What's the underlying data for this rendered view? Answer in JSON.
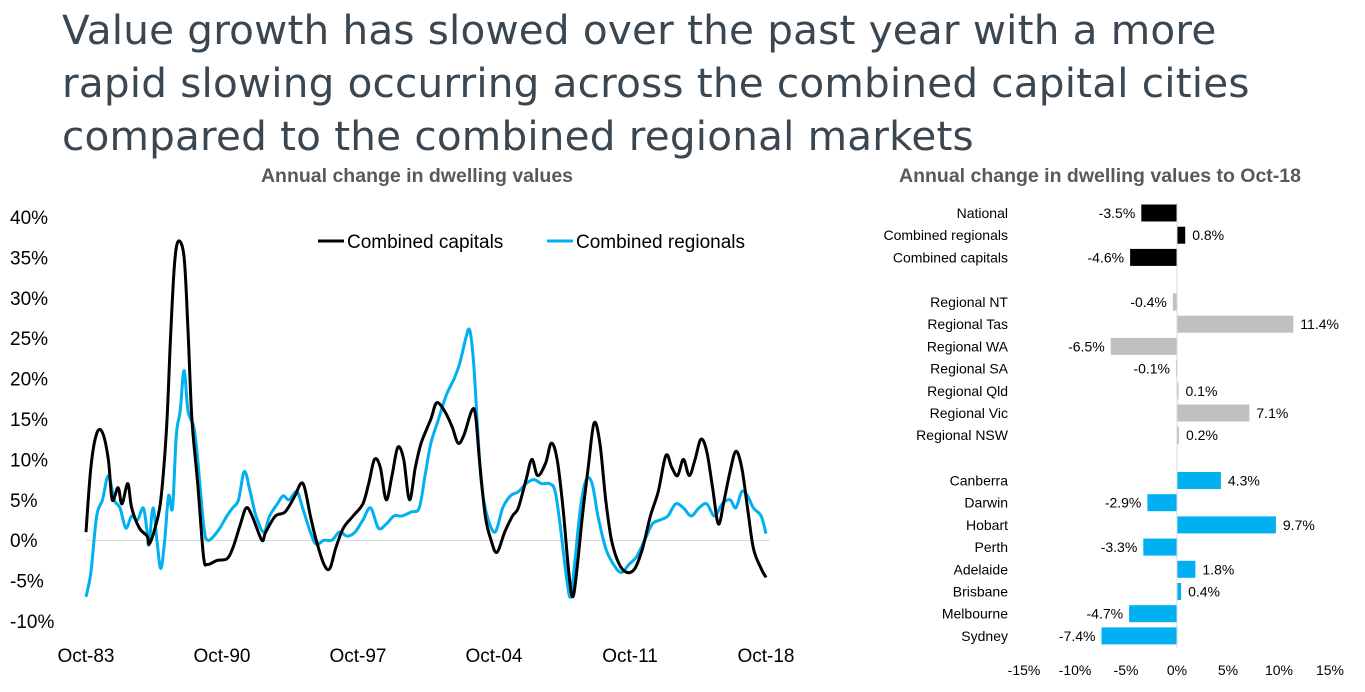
{
  "headline": [
    "Value growth has slowed over the past year with a more",
    "rapid slowing occurring across the combined capital cities",
    "compared to the combined regional markets"
  ],
  "colors": {
    "capitals": "#000000",
    "regionals": "#00b0f0",
    "regional_bars": "#c0c0c0",
    "national_bars": "#000000",
    "city_bars": "#00b0f0"
  },
  "chart_data": [
    {
      "type": "line",
      "title": "Annual change in dwelling values",
      "xlabel": "",
      "ylabel": "",
      "ylim": [
        -10,
        40
      ],
      "y_ticks": [
        "40%",
        "35%",
        "30%",
        "25%",
        "20%",
        "15%",
        "10%",
        "5%",
        "0%",
        "-5%",
        "-10%"
      ],
      "x_ticks": [
        "Oct-83",
        "Oct-90",
        "Oct-97",
        "Oct-04",
        "Oct-11",
        "Oct-18"
      ],
      "legend": [
        "Combined capitals",
        "Combined regionals"
      ],
      "series": [
        {
          "name": "Combined capitals",
          "points": [
            [
              1983.75,
              1
            ],
            [
              1984.0,
              9
            ],
            [
              1984.3,
              13.2
            ],
            [
              1984.6,
              13.3
            ],
            [
              1984.9,
              10
            ],
            [
              1985.1,
              5
            ],
            [
              1985.4,
              6.5
            ],
            [
              1985.6,
              4.5
            ],
            [
              1985.9,
              7
            ],
            [
              1986.1,
              4
            ],
            [
              1986.5,
              1.5
            ],
            [
              1986.9,
              0.5
            ],
            [
              1987.0,
              -0.5
            ],
            [
              1987.3,
              1.5
            ],
            [
              1987.6,
              5
            ],
            [
              1987.9,
              14
            ],
            [
              1988.1,
              25
            ],
            [
              1988.3,
              34
            ],
            [
              1988.5,
              37
            ],
            [
              1988.8,
              35
            ],
            [
              1989.0,
              26
            ],
            [
              1989.2,
              15
            ],
            [
              1989.5,
              7
            ],
            [
              1989.8,
              -2
            ],
            [
              1990.0,
              -3
            ],
            [
              1990.5,
              -2.5
            ],
            [
              1991.0,
              -2.3
            ],
            [
              1991.3,
              -1
            ],
            [
              1991.7,
              2
            ],
            [
              1992.0,
              4
            ],
            [
              1992.3,
              3
            ],
            [
              1992.8,
              0
            ],
            [
              1993.0,
              1
            ],
            [
              1993.5,
              3
            ],
            [
              1994.0,
              3.5
            ],
            [
              1994.5,
              5.5
            ],
            [
              1994.8,
              7
            ],
            [
              1995.0,
              6.5
            ],
            [
              1995.3,
              3
            ],
            [
              1995.6,
              0
            ],
            [
              1996.0,
              -3
            ],
            [
              1996.3,
              -3.5
            ],
            [
              1996.6,
              -1
            ],
            [
              1997.0,
              1.5
            ],
            [
              1997.5,
              3
            ],
            [
              1998.0,
              4.5
            ],
            [
              1998.3,
              7
            ],
            [
              1998.6,
              10
            ],
            [
              1998.9,
              9
            ],
            [
              1999.2,
              5
            ],
            [
              1999.5,
              8
            ],
            [
              1999.8,
              11.5
            ],
            [
              2000.1,
              10
            ],
            [
              2000.4,
              5
            ],
            [
              2000.7,
              9
            ],
            [
              2001.0,
              12
            ],
            [
              2001.5,
              15
            ],
            [
              2001.8,
              17
            ],
            [
              2002.2,
              16
            ],
            [
              2002.6,
              14
            ],
            [
              2002.9,
              12
            ],
            [
              2003.2,
              13
            ],
            [
              2003.6,
              16
            ],
            [
              2003.8,
              15.5
            ],
            [
              2004.0,
              10
            ],
            [
              2004.3,
              3
            ],
            [
              2004.6,
              0
            ],
            [
              2004.9,
              -1.5
            ],
            [
              2005.3,
              1
            ],
            [
              2005.7,
              3
            ],
            [
              2006.0,
              4
            ],
            [
              2006.4,
              7.5
            ],
            [
              2006.7,
              10
            ],
            [
              2007.0,
              8
            ],
            [
              2007.4,
              9.5
            ],
            [
              2007.7,
              12
            ],
            [
              2008.0,
              10
            ],
            [
              2008.3,
              4
            ],
            [
              2008.6,
              -4
            ],
            [
              2008.8,
              -7
            ],
            [
              2009.0,
              -4
            ],
            [
              2009.3,
              3
            ],
            [
              2009.6,
              9
            ],
            [
              2009.9,
              14.5
            ],
            [
              2010.2,
              12
            ],
            [
              2010.5,
              5
            ],
            [
              2010.8,
              0
            ],
            [
              2011.2,
              -3
            ],
            [
              2011.6,
              -4
            ],
            [
              2012.0,
              -3.5
            ],
            [
              2012.4,
              -1
            ],
            [
              2012.8,
              3
            ],
            [
              2013.2,
              6
            ],
            [
              2013.6,
              10.5
            ],
            [
              2013.9,
              9
            ],
            [
              2014.2,
              8
            ],
            [
              2014.5,
              10
            ],
            [
              2014.8,
              8
            ],
            [
              2015.1,
              10
            ],
            [
              2015.4,
              12.5
            ],
            [
              2015.7,
              11
            ],
            [
              2016.0,
              6.5
            ],
            [
              2016.3,
              2
            ],
            [
              2016.6,
              5
            ],
            [
              2016.9,
              8.5
            ],
            [
              2017.2,
              11
            ],
            [
              2017.5,
              9
            ],
            [
              2017.8,
              4
            ],
            [
              2018.1,
              -1
            ],
            [
              2018.5,
              -3.5
            ],
            [
              2018.75,
              -4.6
            ]
          ]
        },
        {
          "name": "Combined regionals",
          "points": [
            [
              1983.75,
              -7
            ],
            [
              1984.0,
              -4
            ],
            [
              1984.3,
              3
            ],
            [
              1984.6,
              5
            ],
            [
              1984.9,
              8
            ],
            [
              1985.2,
              5
            ],
            [
              1985.5,
              4
            ],
            [
              1985.8,
              1.5
            ],
            [
              1986.1,
              3
            ],
            [
              1986.4,
              2.5
            ],
            [
              1986.7,
              4
            ],
            [
              1986.9,
              1
            ],
            [
              1987.0,
              -0.5
            ],
            [
              1987.2,
              4
            ],
            [
              1987.4,
              0
            ],
            [
              1987.6,
              -3.5
            ],
            [
              1987.8,
              0
            ],
            [
              1988.0,
              5.5
            ],
            [
              1988.2,
              4
            ],
            [
              1988.4,
              13
            ],
            [
              1988.6,
              16
            ],
            [
              1988.8,
              21
            ],
            [
              1989.0,
              16
            ],
            [
              1989.3,
              14
            ],
            [
              1989.5,
              10
            ],
            [
              1989.8,
              2
            ],
            [
              1990.0,
              0
            ],
            [
              1990.5,
              1
            ],
            [
              1991.0,
              3
            ],
            [
              1991.3,
              4
            ],
            [
              1991.6,
              5
            ],
            [
              1991.9,
              8.5
            ],
            [
              1992.2,
              6
            ],
            [
              1992.5,
              3
            ],
            [
              1992.9,
              1
            ],
            [
              1993.2,
              3
            ],
            [
              1993.6,
              4.5
            ],
            [
              1993.9,
              5.5
            ],
            [
              1994.2,
              5
            ],
            [
              1994.6,
              6
            ],
            [
              1994.9,
              4
            ],
            [
              1995.3,
              1
            ],
            [
              1995.6,
              -0.5
            ],
            [
              1996.0,
              0
            ],
            [
              1996.4,
              0
            ],
            [
              1996.8,
              1
            ],
            [
              1997.2,
              0.5
            ],
            [
              1997.6,
              1
            ],
            [
              1998.0,
              2.5
            ],
            [
              1998.4,
              4
            ],
            [
              1998.8,
              1.5
            ],
            [
              1999.2,
              2
            ],
            [
              1999.6,
              3
            ],
            [
              2000.0,
              3
            ],
            [
              2000.5,
              3.5
            ],
            [
              2000.9,
              4
            ],
            [
              2001.2,
              8
            ],
            [
              2001.5,
              12
            ],
            [
              2001.9,
              15
            ],
            [
              2002.3,
              18
            ],
            [
              2002.7,
              20
            ],
            [
              2003.0,
              22
            ],
            [
              2003.3,
              25
            ],
            [
              2003.5,
              26
            ],
            [
              2003.7,
              22
            ],
            [
              2003.9,
              14
            ],
            [
              2004.1,
              7
            ],
            [
              2004.4,
              3
            ],
            [
              2004.8,
              1
            ],
            [
              2005.2,
              4
            ],
            [
              2005.6,
              5.5
            ],
            [
              2006.0,
              6
            ],
            [
              2006.4,
              7
            ],
            [
              2006.8,
              7.5
            ],
            [
              2007.2,
              7
            ],
            [
              2007.6,
              7
            ],
            [
              2007.9,
              6
            ],
            [
              2008.2,
              1
            ],
            [
              2008.5,
              -5
            ],
            [
              2008.7,
              -7
            ],
            [
              2008.9,
              -3
            ],
            [
              2009.2,
              4
            ],
            [
              2009.5,
              7.5
            ],
            [
              2009.8,
              7
            ],
            [
              2010.1,
              3
            ],
            [
              2010.5,
              -1
            ],
            [
              2010.9,
              -3
            ],
            [
              2011.3,
              -4
            ],
            [
              2011.7,
              -3
            ],
            [
              2012.1,
              -2
            ],
            [
              2012.5,
              0
            ],
            [
              2012.9,
              2
            ],
            [
              2013.3,
              2.5
            ],
            [
              2013.7,
              3
            ],
            [
              2014.1,
              4.5
            ],
            [
              2014.5,
              4
            ],
            [
              2014.9,
              3
            ],
            [
              2015.3,
              4
            ],
            [
              2015.7,
              4.5
            ],
            [
              2016.1,
              3
            ],
            [
              2016.5,
              4.5
            ],
            [
              2016.9,
              5
            ],
            [
              2017.2,
              4
            ],
            [
              2017.5,
              6
            ],
            [
              2017.8,
              5.5
            ],
            [
              2018.1,
              4
            ],
            [
              2018.5,
              3
            ],
            [
              2018.75,
              0.8
            ]
          ]
        }
      ]
    },
    {
      "type": "bar",
      "orientation": "horizontal",
      "title": "Annual change in dwelling values to Oct-18",
      "xlim": [
        -15,
        15
      ],
      "x_ticks": [
        "-15%",
        "-10%",
        "-5%",
        "0%",
        "5%",
        "10%",
        "15%"
      ],
      "categories": [
        "National",
        "Combined regionals",
        "Combined capitals",
        "Regional NT",
        "Regional Tas",
        "Regional WA",
        "Regional SA",
        "Regional Qld",
        "Regional Vic",
        "Regional NSW",
        "Canberra",
        "Darwin",
        "Hobart",
        "Perth",
        "Adelaide",
        "Brisbane",
        "Melbourne",
        "Sydney"
      ],
      "values": [
        -3.5,
        0.8,
        -4.6,
        -0.4,
        11.4,
        -6.5,
        -0.1,
        0.1,
        7.1,
        0.2,
        4.3,
        -2.9,
        9.7,
        -3.3,
        1.8,
        0.4,
        -4.7,
        -7.4
      ],
      "value_labels": [
        "-3.5%",
        "0.8%",
        "-4.6%",
        "-0.4%",
        "11.4%",
        "-6.5%",
        "-0.1%",
        "0.1%",
        "7.1%",
        "0.2%",
        "4.3%",
        "-2.9%",
        "9.7%",
        "-3.3%",
        "1.8%",
        "0.4%",
        "-4.7%",
        "-7.4%"
      ],
      "groups": [
        "national",
        "national",
        "national",
        "regional",
        "regional",
        "regional",
        "regional",
        "regional",
        "regional",
        "regional",
        "city",
        "city",
        "city",
        "city",
        "city",
        "city",
        "city",
        "city"
      ]
    }
  ]
}
